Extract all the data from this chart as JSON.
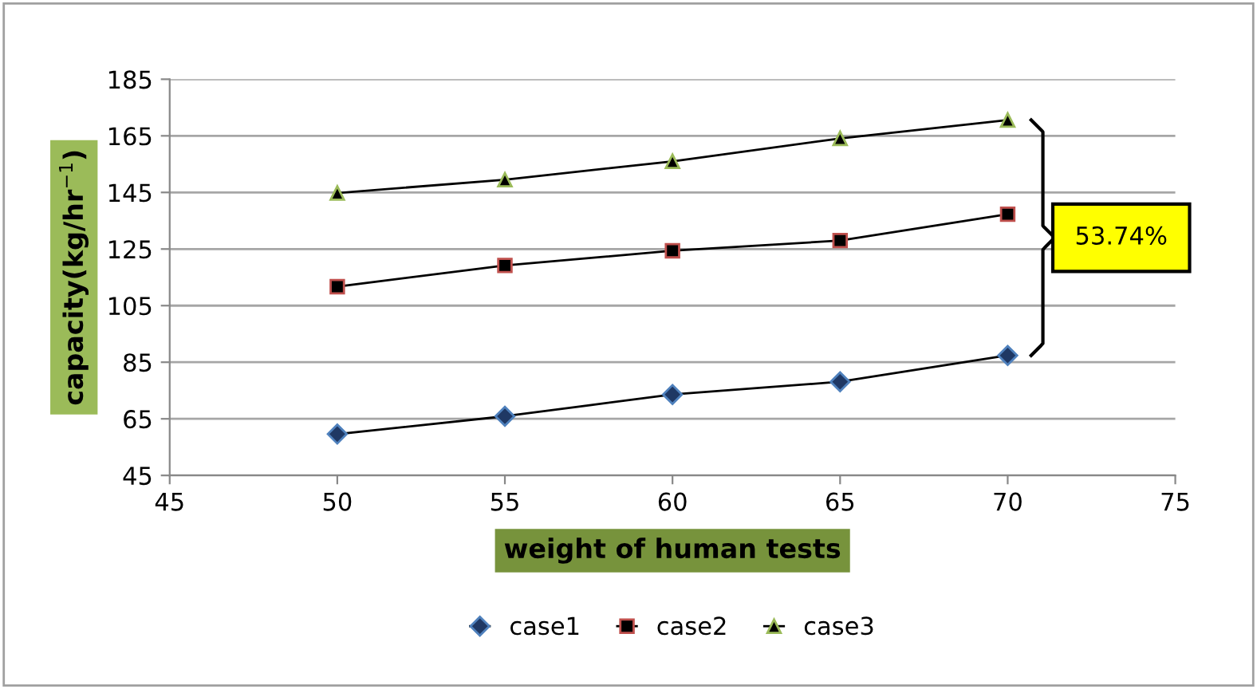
{
  "chart_data": {
    "type": "line",
    "xlabel": "weight of human tests",
    "ylabel": "capacity(kg/hr$^{−1}$)",
    "x": [
      50,
      55,
      60,
      65,
      70
    ],
    "series": [
      {
        "name": "case1",
        "color": "#1f3864",
        "marker": "diamond",
        "values": [
          59.6,
          65.9,
          73.6,
          78.1,
          87.4
        ]
      },
      {
        "name": "case2",
        "color": "#000000",
        "marker": "square",
        "values": [
          111.7,
          119.2,
          124.4,
          128,
          137.3
        ]
      },
      {
        "name": "case3",
        "color": "#000000",
        "marker": "triangle",
        "values": [
          144.8,
          149.5,
          156,
          164.1,
          170.6
        ]
      }
    ],
    "xlim": [
      45,
      75
    ],
    "xticks": [
      45,
      50,
      55,
      60,
      65,
      70,
      75
    ],
    "ylim": [
      45,
      185
    ],
    "yticks": [
      45,
      65,
      85,
      105,
      125,
      145,
      165,
      185
    ],
    "grid": "y",
    "legend": "bottom",
    "line_style": "solid",
    "annotations": [
      "53.74%"
    ]
  }
}
